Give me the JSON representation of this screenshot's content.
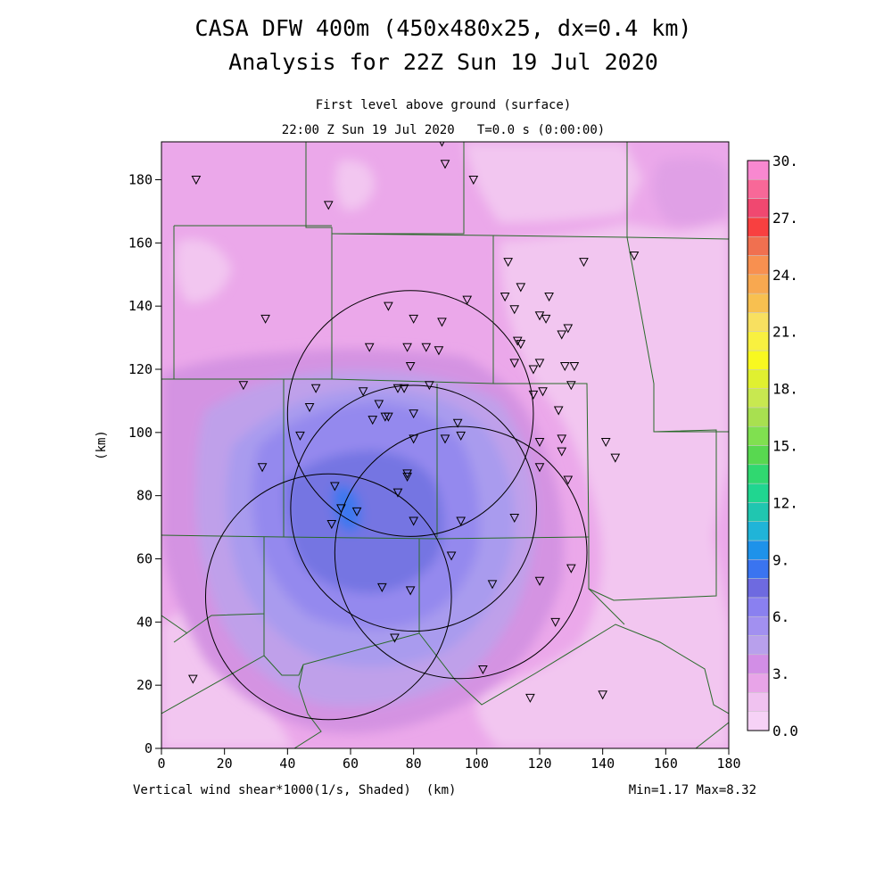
{
  "title": "CASA DFW 400m (450x480x25, dx=0.4 km)",
  "subtitle": "Analysis for 22Z Sun 19 Jul 2020",
  "level_text": "First level above ground (surface)",
  "time_text": "22:00 Z Sun 19 Jul 2020   T=0.0 s (0:00:00)",
  "footer_left": "Vertical wind shear*1000(1/s, Shaded)  (km)",
  "footer_right": "Min=1.17 Max=8.32",
  "chart_data": {
    "type": "heatmap",
    "field": "Vertical wind shear*1000 (1/s)",
    "xlabel": "(km)",
    "ylabel": "(km)",
    "xlim": [
      0,
      180
    ],
    "ylim": [
      0,
      192
    ],
    "x_ticks": [
      0,
      20,
      40,
      60,
      80,
      100,
      120,
      140,
      160,
      180
    ],
    "y_ticks": [
      0,
      20,
      40,
      60,
      80,
      100,
      120,
      140,
      160,
      180
    ],
    "min": 1.17,
    "max": 8.32,
    "colorbar": {
      "range": [
        0,
        30
      ],
      "step": 1.5,
      "labels": [
        "0.0",
        "3.",
        "6.",
        "9.",
        "12.",
        "15.",
        "18.",
        "21.",
        "24.",
        "27.",
        "30."
      ],
      "colors": [
        "#f6d2f6",
        "#f0c2f0",
        "#e8a4e8",
        "#d28ee6",
        "#b8a0ec",
        "#a290f0",
        "#8a80f0",
        "#6e6ae0",
        "#3a74f0",
        "#1e92ea",
        "#20b4d8",
        "#20c6b0",
        "#20d690",
        "#30d870",
        "#58d850",
        "#80e050",
        "#a8e050",
        "#c8e850",
        "#e0f030",
        "#f8f820",
        "#f8f040",
        "#f8e060",
        "#f8c050",
        "#f8a850",
        "#f89050",
        "#f07050",
        "#f84040",
        "#f04870",
        "#f86898",
        "#f888d0"
      ]
    },
    "contours": [
      {
        "level": 2,
        "color": "#e39ae8"
      },
      {
        "level": 3,
        "color": "#d090e0"
      },
      {
        "level": 4,
        "color": "#b79ee8"
      },
      {
        "level": 5,
        "color": "#a497ee"
      },
      {
        "level": 6,
        "color": "#8f86ee"
      },
      {
        "level": 7,
        "color": "#6f6fe0"
      },
      {
        "level": 8,
        "color": "#3c78ef"
      }
    ],
    "radar_rings": [
      {
        "cx": 79,
        "cy": 106,
        "r": 39
      },
      {
        "cx": 53,
        "cy": 48,
        "r": 39
      },
      {
        "cx": 80,
        "cy": 76,
        "r": 39
      },
      {
        "cx": 95,
        "cy": 62,
        "r": 40
      }
    ],
    "stations": [
      [
        11,
        180
      ],
      [
        89,
        192
      ],
      [
        90,
        185
      ],
      [
        99,
        180
      ],
      [
        53,
        172
      ],
      [
        150,
        156
      ],
      [
        134,
        154
      ],
      [
        110,
        154
      ],
      [
        114,
        146
      ],
      [
        97,
        142
      ],
      [
        109,
        143
      ],
      [
        112,
        139
      ],
      [
        123,
        143
      ],
      [
        120,
        137
      ],
      [
        122,
        136
      ],
      [
        129,
        133
      ],
      [
        127,
        131
      ],
      [
        33,
        136
      ],
      [
        72,
        140
      ],
      [
        80,
        136
      ],
      [
        89,
        135
      ],
      [
        66,
        127
      ],
      [
        78,
        127
      ],
      [
        84,
        127
      ],
      [
        88,
        126
      ],
      [
        113,
        129
      ],
      [
        114,
        128
      ],
      [
        79,
        121
      ],
      [
        112,
        122
      ],
      [
        120,
        122
      ],
      [
        118,
        120
      ],
      [
        128,
        121
      ],
      [
        131,
        121
      ],
      [
        130,
        115
      ],
      [
        26,
        115
      ],
      [
        49,
        114
      ],
      [
        64,
        113
      ],
      [
        75,
        114
      ],
      [
        77,
        114
      ],
      [
        85,
        115
      ],
      [
        118,
        112
      ],
      [
        121,
        113
      ],
      [
        47,
        108
      ],
      [
        69,
        109
      ],
      [
        71,
        105
      ],
      [
        67,
        104
      ],
      [
        72,
        105
      ],
      [
        80,
        106
      ],
      [
        94,
        103
      ],
      [
        126,
        107
      ],
      [
        44,
        99
      ],
      [
        80,
        98
      ],
      [
        90,
        98
      ],
      [
        95,
        99
      ],
      [
        120,
        97
      ],
      [
        127,
        98
      ],
      [
        141,
        97
      ],
      [
        144,
        92
      ],
      [
        32,
        89
      ],
      [
        120,
        89
      ],
      [
        127,
        94
      ],
      [
        129,
        85
      ],
      [
        78,
        87
      ],
      [
        78,
        86
      ],
      [
        55,
        83
      ],
      [
        75,
        81
      ],
      [
        57,
        76
      ],
      [
        62,
        75
      ],
      [
        54,
        71
      ],
      [
        80,
        72
      ],
      [
        95,
        72
      ],
      [
        112,
        73
      ],
      [
        92,
        61
      ],
      [
        130,
        57
      ],
      [
        120,
        53
      ],
      [
        70,
        51
      ],
      [
        79,
        50
      ],
      [
        105,
        52
      ],
      [
        125,
        40
      ],
      [
        74,
        35
      ],
      [
        102,
        25
      ],
      [
        10,
        22
      ],
      [
        117,
        16
      ],
      [
        140,
        17
      ]
    ]
  }
}
